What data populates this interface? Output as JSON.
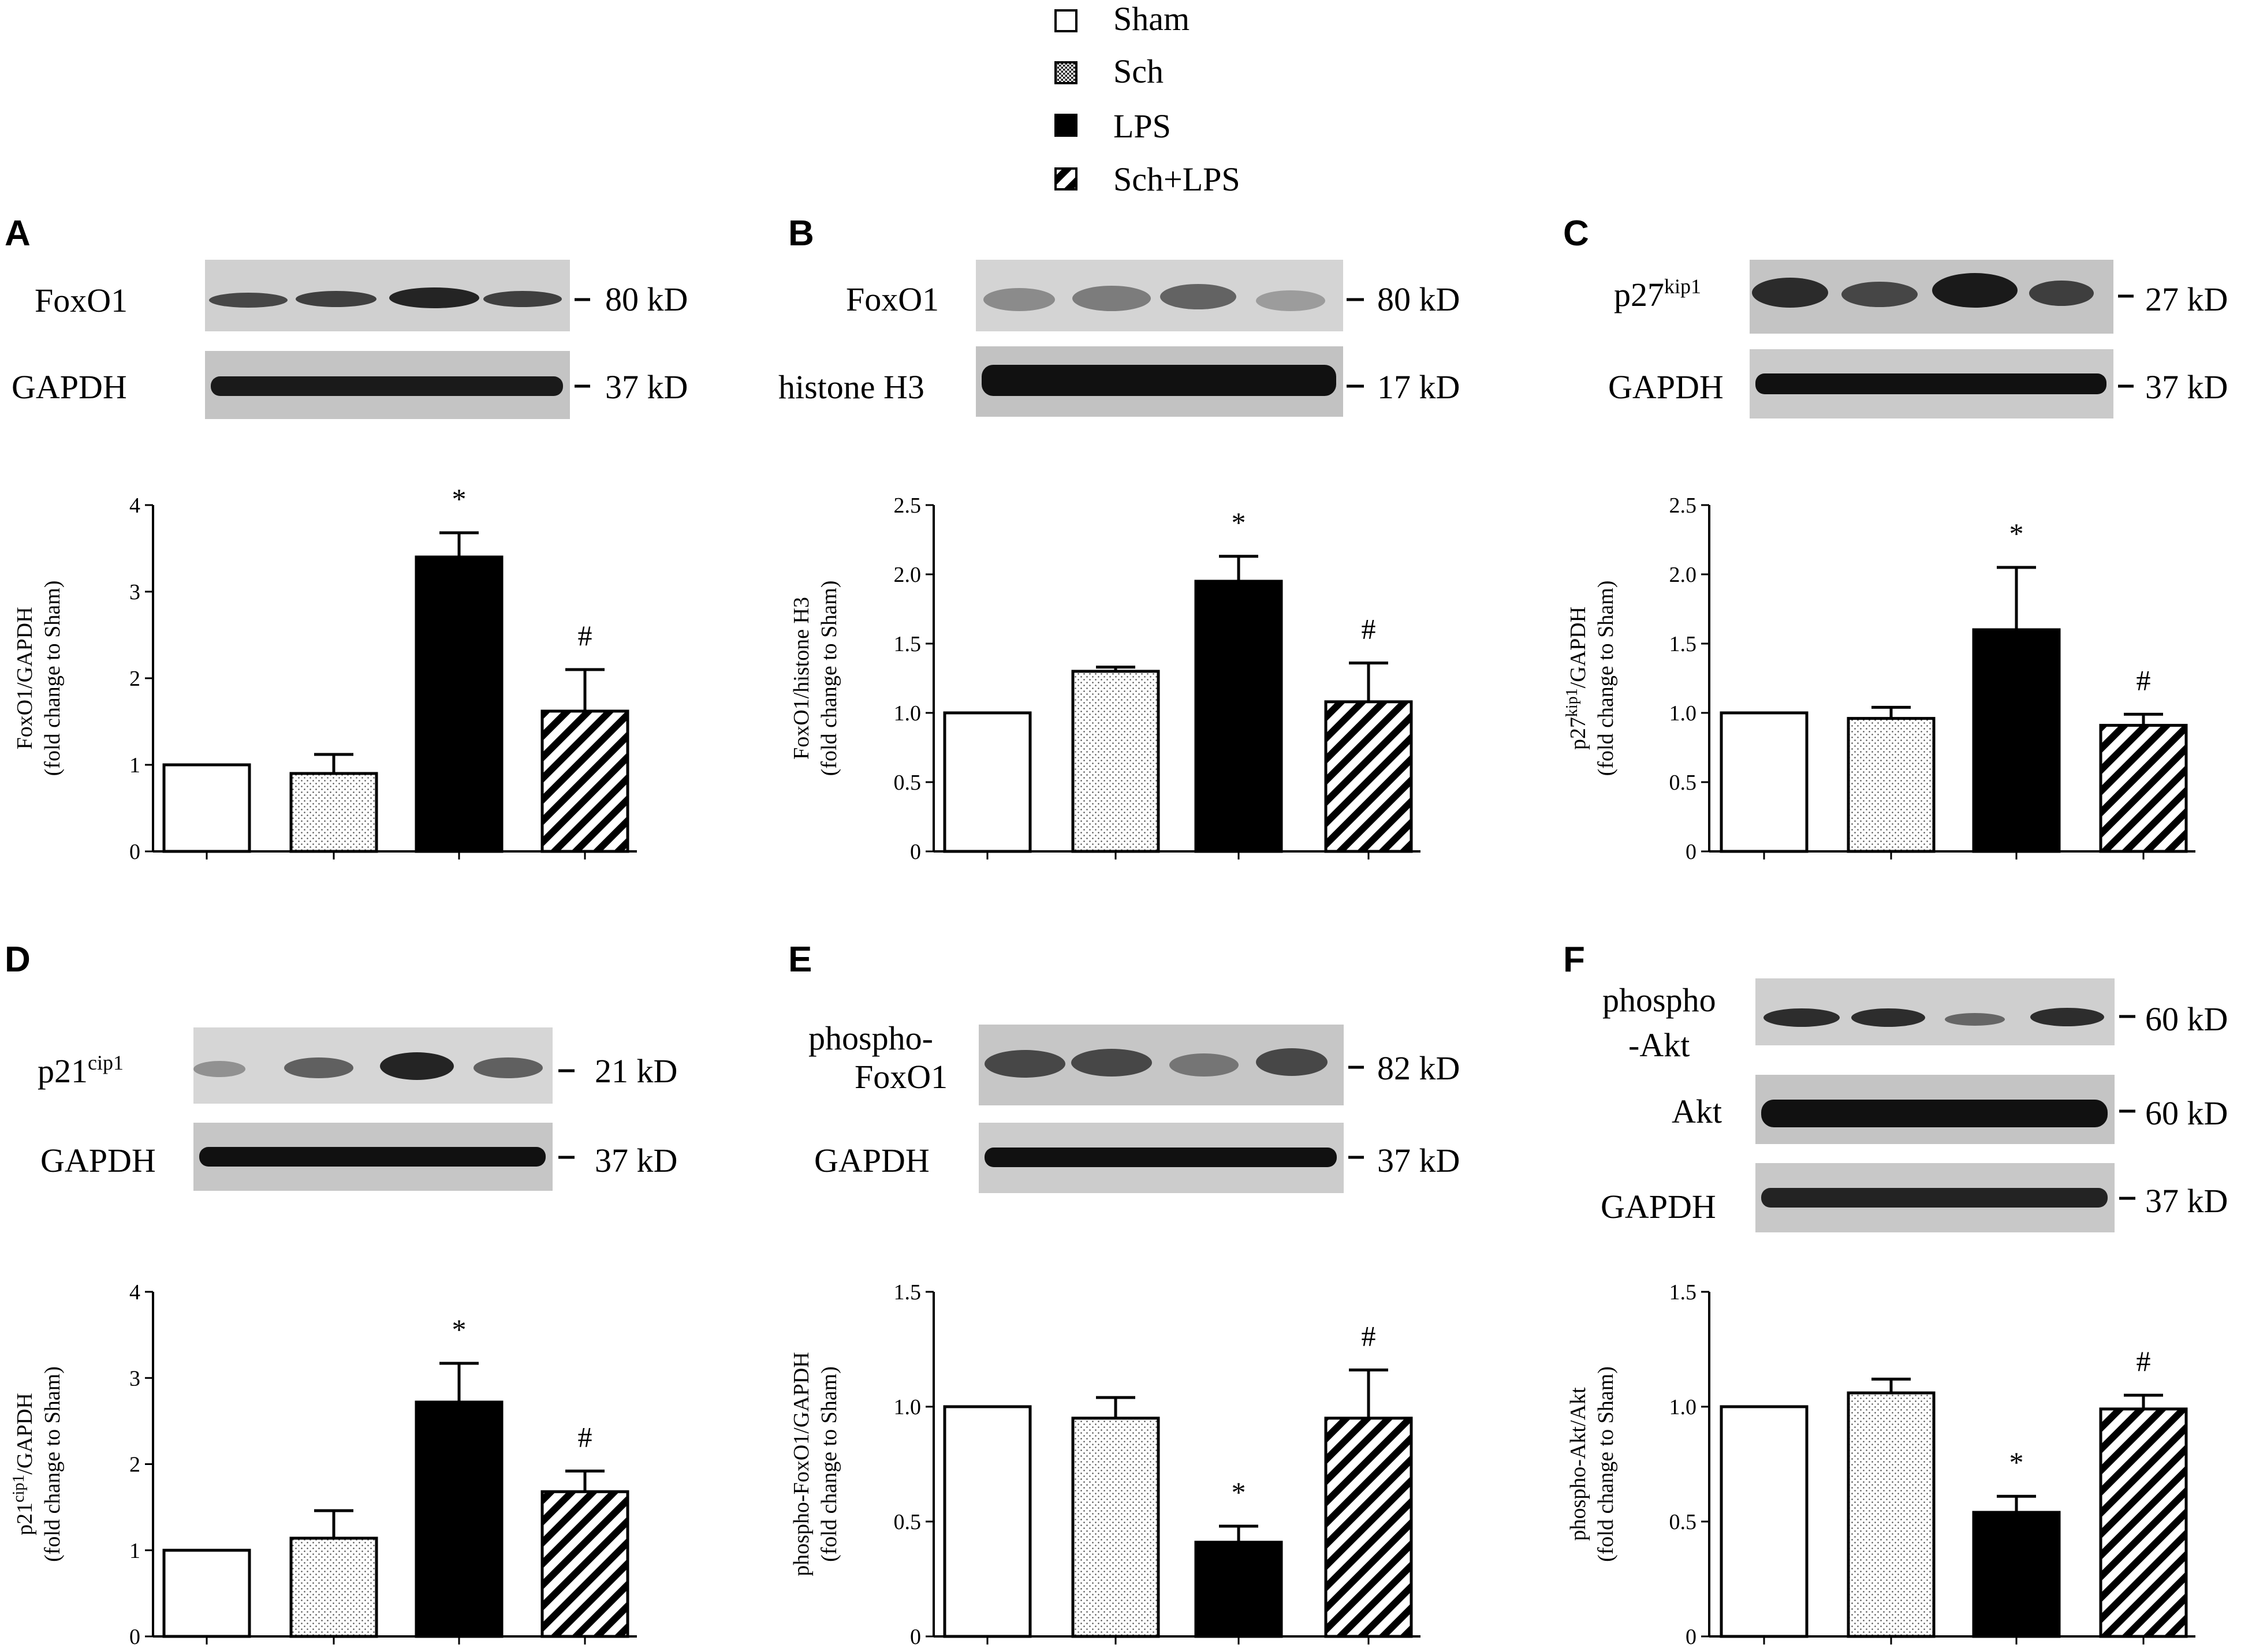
{
  "legend": {
    "entries": [
      {
        "label": "Sham",
        "pattern": "open"
      },
      {
        "label": "Sch",
        "pattern": "dots"
      },
      {
        "label": "LPS",
        "pattern": "solid"
      },
      {
        "label": "Sch+LPS",
        "pattern": "hatch"
      }
    ]
  },
  "panels": [
    {
      "letter": "A",
      "blot": [
        {
          "label": "FoxO1",
          "marker": "80 kD"
        },
        {
          "label": "GAPDH",
          "marker": "37 kD"
        }
      ]
    },
    {
      "letter": "B",
      "blot": [
        {
          "label": "FoxO1",
          "marker": "80 kD"
        },
        {
          "label": "histone H3",
          "marker": "17 kD"
        }
      ]
    },
    {
      "letter": "C",
      "blot": [
        {
          "label": "p27",
          "sup": "kip1",
          "marker": "27 kD"
        },
        {
          "label": "GAPDH",
          "marker": "37 kD"
        }
      ]
    },
    {
      "letter": "D",
      "blot": [
        {
          "label": "p21",
          "sup": "cip1",
          "marker": "21 kD"
        },
        {
          "label": "GAPDH",
          "marker": "37 kD"
        }
      ]
    },
    {
      "letter": "E",
      "blot": [
        {
          "label": "phospho-",
          "label2": "FoxO1",
          "marker": "82 kD"
        },
        {
          "label": "GAPDH",
          "marker": "37 kD"
        }
      ]
    },
    {
      "letter": "F",
      "blot": [
        {
          "label": "phospho",
          "label2": "-Akt",
          "marker": "60 kD"
        },
        {
          "label": "Akt",
          "marker": "60 kD"
        },
        {
          "label": "GAPDH",
          "marker": "37 kD"
        }
      ]
    }
  ],
  "chart_data": [
    {
      "panel": "A",
      "type": "bar",
      "categories": [
        "Sham",
        "Sch",
        "LPS",
        "Sch+LPS"
      ],
      "values": [
        1.0,
        0.9,
        3.4,
        1.62
      ],
      "errors": [
        0,
        0.22,
        0.28,
        0.48
      ],
      "ylim": [
        0,
        4
      ],
      "yticks": [
        "0",
        "1",
        "2",
        "3",
        "4"
      ],
      "ylabel": "FoxO1/GAPDH",
      "ylabel_sub": "(fold change to Sham)",
      "annotations": [
        "",
        "",
        "*",
        "#"
      ]
    },
    {
      "panel": "B",
      "type": "bar",
      "categories": [
        "Sham",
        "Sch",
        "LPS",
        "Sch+LPS"
      ],
      "values": [
        1.0,
        1.3,
        1.95,
        1.08
      ],
      "errors": [
        0,
        0.03,
        0.18,
        0.28
      ],
      "ylim": [
        0,
        2.5
      ],
      "yticks": [
        "0",
        "0.5",
        "1.0",
        "1.5",
        "2.0",
        "2.5"
      ],
      "ylabel": "FoxO1/histone H3",
      "ylabel_sub": "(fold change to Sham)",
      "annotations": [
        "",
        "",
        "*",
        "#"
      ]
    },
    {
      "panel": "C",
      "type": "bar",
      "categories": [
        "Sham",
        "Sch",
        "LPS",
        "Sch+LPS"
      ],
      "values": [
        1.0,
        0.96,
        1.6,
        0.91
      ],
      "errors": [
        0,
        0.08,
        0.45,
        0.08
      ],
      "ylim": [
        0,
        2.5
      ],
      "yticks": [
        "0",
        "0.5",
        "1.0",
        "1.5",
        "2.0",
        "2.5"
      ],
      "ylabel": "p27",
      "ylabel_sup": "kip1",
      "ylabel_rest": "/GAPDH",
      "ylabel_sub": "(fold change to Sham)",
      "annotations": [
        "",
        "",
        "*",
        "#"
      ]
    },
    {
      "panel": "D",
      "type": "bar",
      "categories": [
        "Sham",
        "Sch",
        "LPS",
        "Sch+LPS"
      ],
      "values": [
        1.0,
        1.14,
        2.72,
        1.68
      ],
      "errors": [
        0,
        0.32,
        0.45,
        0.24
      ],
      "ylim": [
        0,
        4
      ],
      "yticks": [
        "0",
        "1",
        "2",
        "3",
        "4"
      ],
      "ylabel": "p21",
      "ylabel_sup": "cip1",
      "ylabel_rest": "/GAPDH",
      "ylabel_sub": "(fold change to Sham)",
      "annotations": [
        "",
        "",
        "*",
        "#"
      ]
    },
    {
      "panel": "E",
      "type": "bar",
      "categories": [
        "Sham",
        "Sch",
        "LPS",
        "Sch+LPS"
      ],
      "values": [
        1.0,
        0.95,
        0.41,
        0.95
      ],
      "errors": [
        0,
        0.09,
        0.07,
        0.21
      ],
      "ylim": [
        0,
        1.5
      ],
      "yticks": [
        "0",
        "0.5",
        "1.0",
        "1.5"
      ],
      "ylabel": "phospho-FoxO1/GAPDH",
      "ylabel_sub": "(fold change to Sham)",
      "annotations": [
        "",
        "",
        "*",
        "#"
      ]
    },
    {
      "panel": "F",
      "type": "bar",
      "categories": [
        "Sham",
        "Sch",
        "LPS",
        "Sch+LPS"
      ],
      "values": [
        1.0,
        1.06,
        0.54,
        0.99
      ],
      "errors": [
        0,
        0.06,
        0.07,
        0.06
      ],
      "ylim": [
        0,
        1.5
      ],
      "yticks": [
        "0",
        "0.5",
        "1.0",
        "1.5"
      ],
      "ylabel": "phospho-Akt/Akt",
      "ylabel_sub": "(fold change to Sham)",
      "annotations": [
        "",
        "",
        "*",
        "#"
      ]
    }
  ]
}
